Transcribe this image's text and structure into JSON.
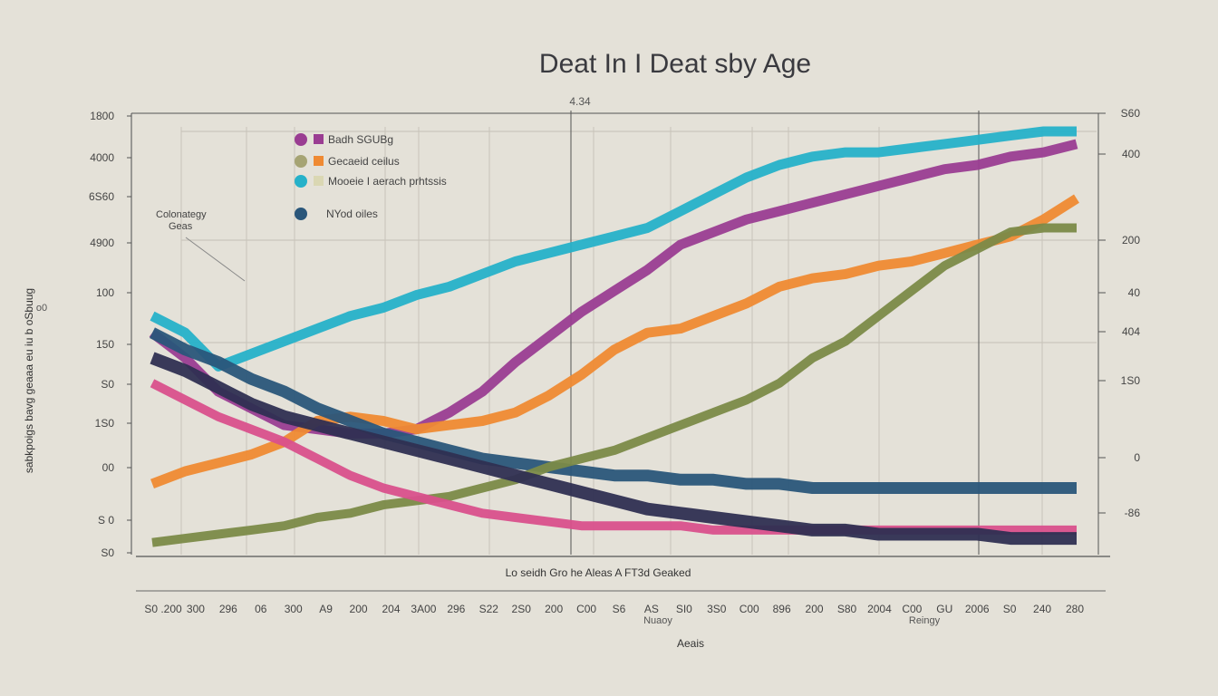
{
  "chart_data": {
    "type": "line",
    "title": "Deat In I Deat sby Age",
    "subtitle": "4.34",
    "xlabel": "Aeais",
    "x_axis_caption": "Lo seidh Gro he Aleas A FT3d Geaked",
    "ylabel": "sabkpoigs bavg geaaa eu iu b oSbuug",
    "ylabel_short": "o0",
    "x_ticks": [
      "S0 .200",
      "300",
      "296",
      "06",
      "300",
      "A9",
      "200",
      "204",
      "3A00",
      "296",
      "S22",
      "2S0",
      "200",
      "C00",
      "S6",
      "AS",
      "SI0",
      "3S0",
      "C00",
      "896",
      "200",
      "S80",
      "2004",
      "C00",
      "GU",
      "2006",
      "S0",
      "240",
      "280"
    ],
    "x_tick_notes": [
      "Nuaoy",
      "Reingy"
    ],
    "y_ticks_left": [
      "1800",
      "4000",
      "6S60",
      "4900",
      "100",
      "150",
      "S0",
      "1S0",
      "00",
      "S 0",
      "S0"
    ],
    "y_ticks_right": [
      "S60",
      "400",
      "200",
      "40",
      "404",
      "1S0",
      "0",
      "-86"
    ],
    "grid": true,
    "legend_position": "top-left",
    "annotation": {
      "line1": "Colonategy",
      "line2": "Geas"
    },
    "ylim": [
      0,
      100
    ],
    "series": [
      {
        "name": "Badh SGUBg",
        "color": "#9a3d92",
        "x": [
          0,
          1,
          2,
          3,
          4,
          5,
          6,
          7,
          8,
          9,
          10,
          11,
          12,
          13,
          14,
          15,
          16,
          17,
          18,
          19,
          20,
          21,
          22,
          23,
          24,
          25,
          26,
          27,
          28
        ],
        "values": [
          52,
          46,
          38,
          34,
          30,
          29,
          28,
          28,
          29,
          33,
          38,
          45,
          51,
          57,
          62,
          67,
          73,
          76,
          79,
          81,
          83,
          85,
          87,
          89,
          91,
          92,
          94,
          95,
          97
        ]
      },
      {
        "name": "Gecaeid ceilus",
        "color": "#ef8a33",
        "x": [
          0,
          1,
          2,
          3,
          4,
          5,
          6,
          7,
          8,
          9,
          10,
          11,
          12,
          13,
          14,
          15,
          16,
          17,
          18,
          19,
          20,
          21,
          22,
          23,
          24,
          25,
          26,
          27,
          28
        ],
        "values": [
          16,
          19,
          21,
          23,
          26,
          31,
          32,
          31,
          29,
          30,
          31,
          33,
          37,
          42,
          48,
          52,
          53,
          56,
          59,
          63,
          65,
          66,
          68,
          69,
          71,
          73,
          75,
          79,
          84
        ]
      },
      {
        "name": "Mooeie I aerach prhtssis",
        "color": "#26b1c9",
        "x": [
          0,
          1,
          2,
          3,
          4,
          5,
          6,
          7,
          8,
          9,
          10,
          11,
          12,
          13,
          14,
          15,
          16,
          17,
          18,
          19,
          20,
          21,
          22,
          23,
          24,
          25,
          26,
          27,
          28
        ],
        "values": [
          56,
          52,
          44,
          47,
          50,
          53,
          56,
          58,
          61,
          63,
          66,
          69,
          71,
          73,
          75,
          77,
          81,
          85,
          89,
          92,
          94,
          95,
          95,
          96,
          97,
          98,
          99,
          100,
          100
        ]
      },
      {
        "name": "NYod oiles",
        "color": "#2a567a",
        "x": [
          0,
          1,
          2,
          3,
          4,
          5,
          6,
          7,
          8,
          9,
          10,
          11,
          12,
          13,
          14,
          15,
          16,
          17,
          18,
          19,
          20,
          21,
          22,
          23,
          24,
          25,
          26,
          27,
          28
        ],
        "values": [
          52,
          48,
          45,
          41,
          38,
          34,
          31,
          28,
          26,
          24,
          22,
          21,
          20,
          19,
          18,
          18,
          17,
          17,
          16,
          16,
          15,
          15,
          15,
          15,
          15,
          15,
          15,
          15,
          15
        ]
      },
      {
        "name": "",
        "color": "#7b8a48",
        "x": [
          0,
          1,
          2,
          3,
          4,
          5,
          6,
          7,
          8,
          9,
          10,
          11,
          12,
          13,
          14,
          15,
          16,
          17,
          18,
          19,
          20,
          21,
          22,
          23,
          24,
          25,
          26,
          27,
          28
        ],
        "values": [
          2,
          3,
          4,
          5,
          6,
          8,
          9,
          11,
          12,
          13,
          15,
          17,
          20,
          22,
          24,
          27,
          30,
          33,
          36,
          40,
          46,
          50,
          56,
          62,
          68,
          72,
          76,
          77,
          77
        ]
      },
      {
        "name": "",
        "color": "#d9508c",
        "x": [
          0,
          1,
          2,
          3,
          4,
          5,
          6,
          7,
          8,
          9,
          10,
          11,
          12,
          13,
          14,
          15,
          16,
          17,
          18,
          19,
          20,
          21,
          22,
          23,
          24,
          25,
          26,
          27,
          28
        ],
        "values": [
          40,
          36,
          32,
          29,
          26,
          22,
          18,
          15,
          13,
          11,
          9,
          8,
          7,
          6,
          6,
          6,
          6,
          5,
          5,
          5,
          5,
          5,
          5,
          5,
          5,
          5,
          5,
          5,
          5
        ]
      },
      {
        "name": "",
        "color": "#2f2f52",
        "x": [
          0,
          1,
          2,
          3,
          4,
          5,
          6,
          7,
          8,
          9,
          10,
          11,
          12,
          13,
          14,
          15,
          16,
          17,
          18,
          19,
          20,
          21,
          22,
          23,
          24,
          25,
          26,
          27,
          28
        ],
        "values": [
          46,
          43,
          39,
          35,
          32,
          30,
          28,
          26,
          24,
          22,
          20,
          18,
          16,
          14,
          12,
          10,
          9,
          8,
          7,
          6,
          5,
          5,
          4,
          4,
          4,
          4,
          3,
          3,
          3
        ]
      }
    ]
  },
  "legend": [
    {
      "label": "Badh SGUBg",
      "color": "#9a3d92",
      "color2": "#9a3d92"
    },
    {
      "label": "Gecaeid ceilus",
      "color": "#a6a474",
      "color2": "#ef8a33"
    },
    {
      "label": "Mooeie I aerach prhtssis",
      "color": "#26b1c9",
      "color2": "#dad7b3"
    },
    {
      "label": "NYod oiles",
      "color": "#2a567a",
      "color2": ""
    }
  ]
}
